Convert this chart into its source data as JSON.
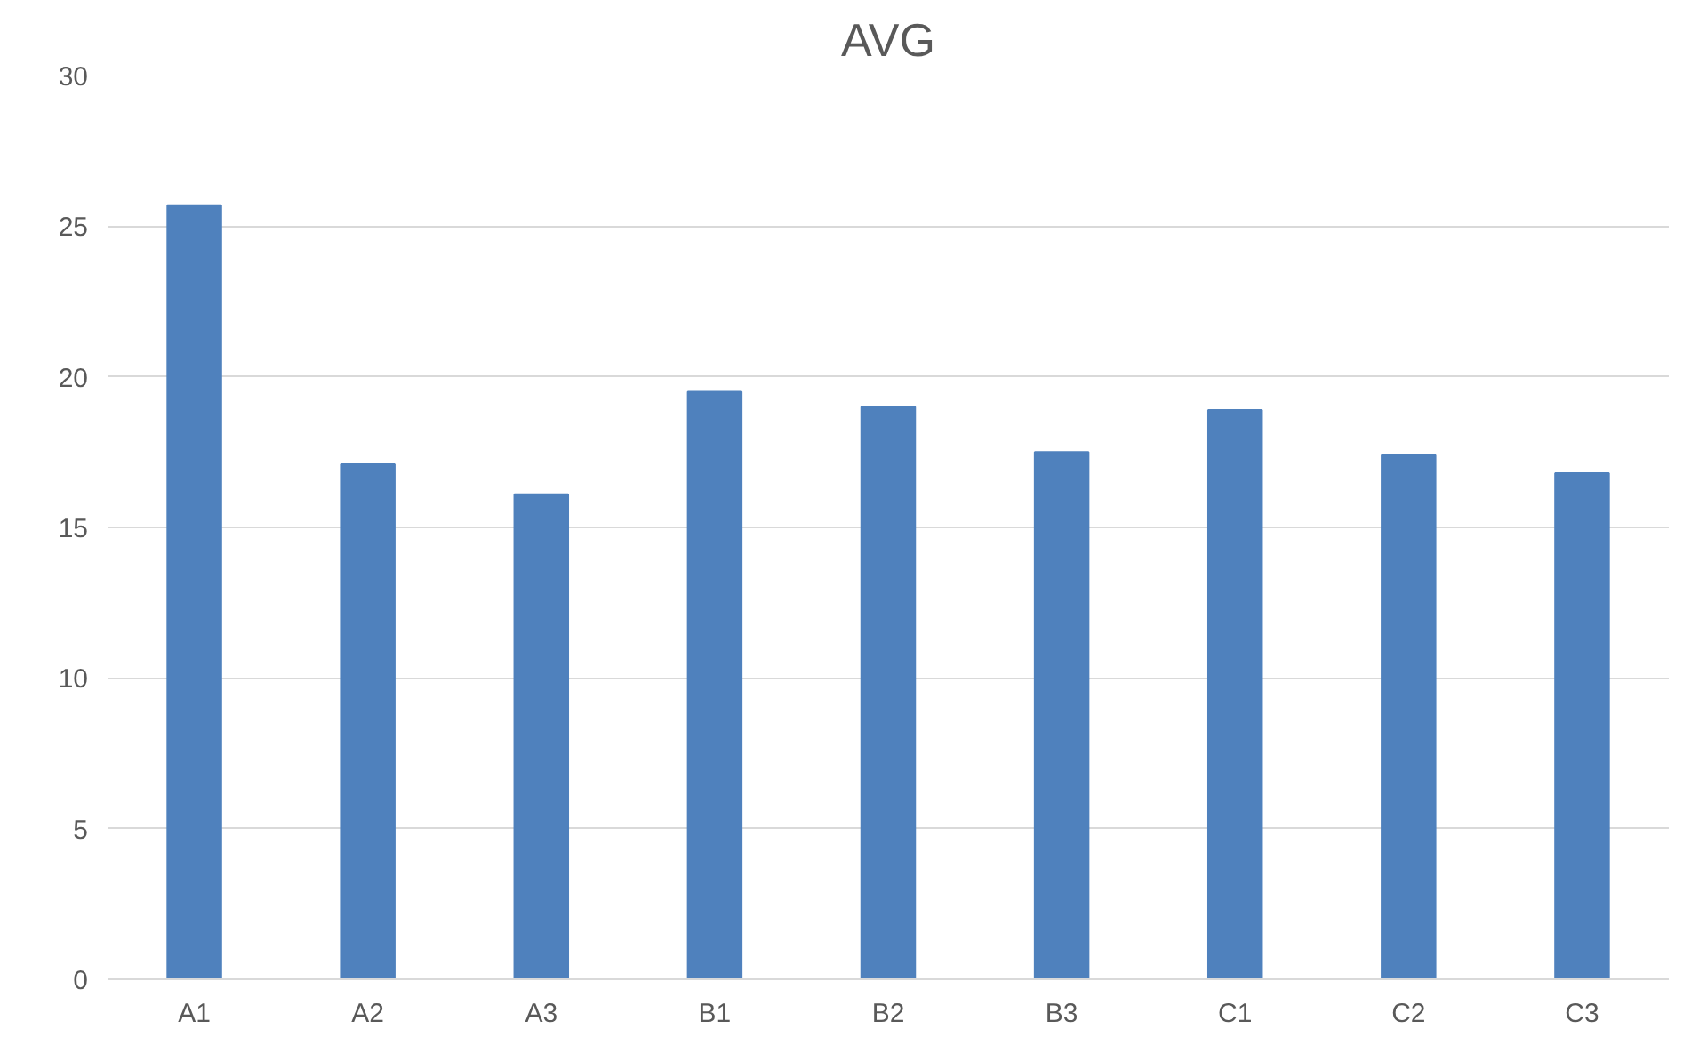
{
  "chart_data": {
    "type": "bar",
    "title": "AVG",
    "categories": [
      "A1",
      "A2",
      "A3",
      "B1",
      "B2",
      "B3",
      "C1",
      "C2",
      "C3"
    ],
    "values": [
      25.7,
      17.1,
      16.1,
      19.5,
      19.0,
      17.5,
      18.9,
      17.4,
      16.8
    ],
    "color": "#4f81bd",
    "ylim": [
      0,
      30
    ],
    "yticks": [
      0,
      5,
      10,
      15,
      20,
      25,
      30
    ],
    "grid": "y"
  }
}
